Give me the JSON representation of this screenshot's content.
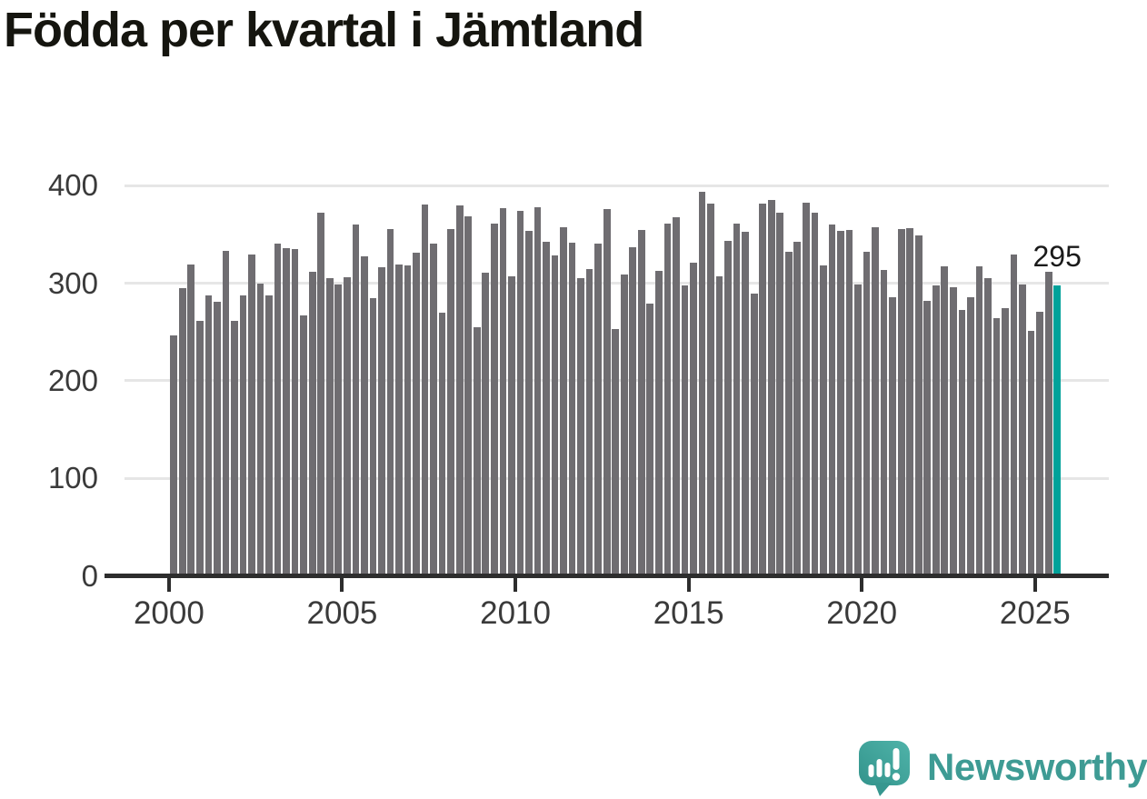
{
  "title": "Födda per kvartal i Jämtland",
  "annotation": {
    "label": "295"
  },
  "logo": {
    "icon": "newsworthy-speech-bubble-bar-chart-icon",
    "text": "Newsworthy"
  },
  "colors": {
    "bar": "#6f6d71",
    "highlight": "#00a29a",
    "grid": "#e6e6e6",
    "axis": "#2d2d2d",
    "tick_text": "#3a3a3a",
    "title_text": "#15150f",
    "logo_teal": "#3e9b94"
  },
  "chart_data": {
    "type": "bar",
    "title": "Födda per kvartal i Jämtland",
    "xlabel": "",
    "ylabel": "",
    "ylim": [
      0,
      400
    ],
    "grid": "horizontal",
    "legend": "none",
    "yticks": [
      0,
      100,
      200,
      300,
      400
    ],
    "xticks": [
      "2000",
      "2005",
      "2010",
      "2015",
      "2020",
      "2025"
    ],
    "xtick_quarter_indices": [
      0,
      20,
      40,
      60,
      80,
      100
    ],
    "highlight_index": 102,
    "highlight_label": "295",
    "categories": [
      "2000 Q1",
      "2000 Q2",
      "2000 Q3",
      "2000 Q4",
      "2001 Q1",
      "2001 Q2",
      "2001 Q3",
      "2001 Q4",
      "2002 Q1",
      "2002 Q2",
      "2002 Q3",
      "2002 Q4",
      "2003 Q1",
      "2003 Q2",
      "2003 Q3",
      "2003 Q4",
      "2004 Q1",
      "2004 Q2",
      "2004 Q3",
      "2004 Q4",
      "2005 Q1",
      "2005 Q2",
      "2005 Q3",
      "2005 Q4",
      "2006 Q1",
      "2006 Q2",
      "2006 Q3",
      "2006 Q4",
      "2007 Q1",
      "2007 Q2",
      "2007 Q3",
      "2007 Q4",
      "2008 Q1",
      "2008 Q2",
      "2008 Q3",
      "2008 Q4",
      "2009 Q1",
      "2009 Q2",
      "2009 Q3",
      "2009 Q4",
      "2010 Q1",
      "2010 Q2",
      "2010 Q3",
      "2010 Q4",
      "2011 Q1",
      "2011 Q2",
      "2011 Q3",
      "2011 Q4",
      "2012 Q1",
      "2012 Q2",
      "2012 Q3",
      "2012 Q4",
      "2013 Q1",
      "2013 Q2",
      "2013 Q3",
      "2013 Q4",
      "2014 Q1",
      "2014 Q2",
      "2014 Q3",
      "2014 Q4",
      "2015 Q1",
      "2015 Q2",
      "2015 Q3",
      "2015 Q4",
      "2016 Q1",
      "2016 Q2",
      "2016 Q3",
      "2016 Q4",
      "2017 Q1",
      "2017 Q2",
      "2017 Q3",
      "2017 Q4",
      "2018 Q1",
      "2018 Q2",
      "2018 Q3",
      "2018 Q4",
      "2019 Q1",
      "2019 Q2",
      "2019 Q3",
      "2019 Q4",
      "2020 Q1",
      "2020 Q2",
      "2020 Q3",
      "2020 Q4",
      "2021 Q1",
      "2021 Q2",
      "2021 Q3",
      "2021 Q4",
      "2022 Q1",
      "2022 Q2",
      "2022 Q3",
      "2022 Q4",
      "2023 Q1",
      "2023 Q2",
      "2023 Q3",
      "2023 Q4",
      "2024 Q1",
      "2024 Q2",
      "2024 Q3",
      "2024 Q4",
      "2025 Q1",
      "2025 Q2",
      "2025 Q3"
    ],
    "values": [
      244,
      293,
      317,
      259,
      285,
      279,
      331,
      259,
      285,
      327,
      297,
      285,
      338,
      334,
      333,
      265,
      309,
      370,
      303,
      296,
      304,
      358,
      325,
      282,
      314,
      353,
      317,
      316,
      329,
      378,
      338,
      267,
      353,
      377,
      366,
      253,
      308,
      359,
      375,
      305,
      372,
      351,
      376,
      340,
      326,
      355,
      339,
      303,
      312,
      338,
      374,
      251,
      307,
      335,
      352,
      277,
      310,
      359,
      365,
      295,
      319,
      391,
      379,
      305,
      341,
      359,
      350,
      287,
      379,
      383,
      370,
      330,
      340,
      380,
      370,
      316,
      358,
      351,
      352,
      296,
      330,
      355,
      311,
      283,
      353,
      354,
      347,
      280,
      295,
      315,
      294,
      270,
      283,
      315,
      303,
      262,
      272,
      327,
      296,
      249,
      268,
      309,
      295
    ]
  }
}
